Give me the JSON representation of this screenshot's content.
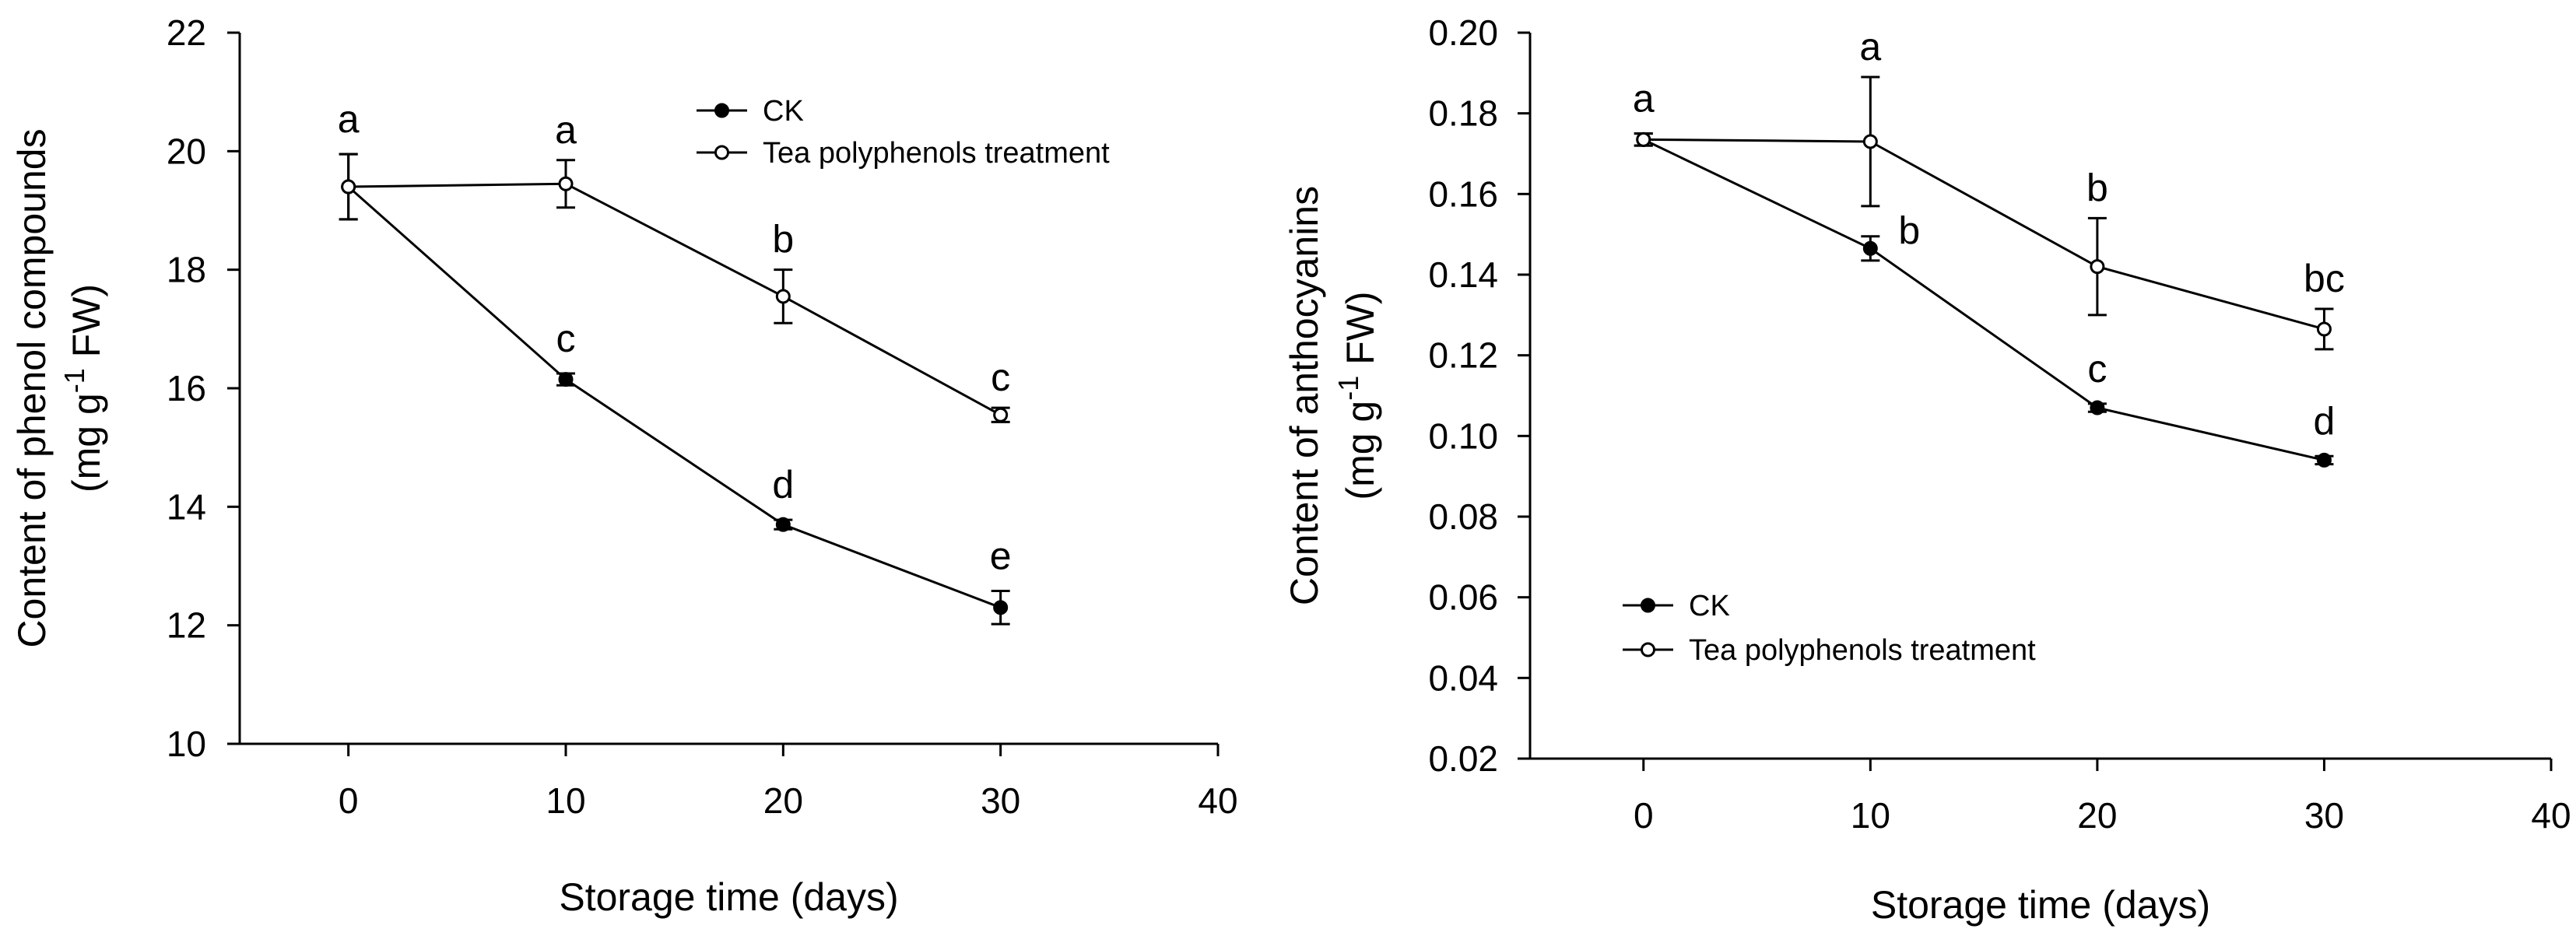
{
  "chart_data": [
    {
      "type": "line",
      "ylabel_line1": "Content of phenol compounds",
      "ylabel_line2_prefix": "(mg g",
      "ylabel_superscript": "-1",
      "ylabel_line2_suffix": " FW)",
      "xlabel": "Storage time (days)",
      "xlim": [
        -5,
        40
      ],
      "ylim": [
        10,
        22
      ],
      "xticks": [
        0,
        10,
        20,
        30,
        40
      ],
      "yticks": [
        10,
        12,
        14,
        16,
        18,
        20,
        22
      ],
      "ytick_labels": [
        "10",
        "12",
        "14",
        "16",
        "18",
        "20",
        "22"
      ],
      "legend_position": "top-right",
      "series": [
        {
          "name": "CK",
          "marker": "filled",
          "x": [
            0,
            10,
            20,
            30
          ],
          "y": [
            19.4,
            16.15,
            13.7,
            12.3
          ],
          "err": [
            0.55,
            0.1,
            0.08,
            0.28
          ],
          "labels": [
            "a",
            "c",
            "d",
            "e"
          ]
        },
        {
          "name": "Tea polyphenols treatment",
          "marker": "open",
          "x": [
            0,
            10,
            20,
            30
          ],
          "y": [
            19.4,
            19.45,
            17.55,
            15.55
          ],
          "err": [
            0.55,
            0.4,
            0.45,
            0.12
          ],
          "labels": [
            "",
            "a",
            "b",
            "c"
          ]
        }
      ]
    },
    {
      "type": "line",
      "ylabel_line1": "Content of anthocyanins",
      "ylabel_line2_prefix": "(mg g",
      "ylabel_superscript": "-1",
      "ylabel_line2_suffix": " FW)",
      "xlabel": "Storage time (days)",
      "xlim": [
        -5,
        40
      ],
      "ylim": [
        0.02,
        0.2
      ],
      "xticks": [
        0,
        10,
        20,
        30,
        40
      ],
      "yticks": [
        0.02,
        0.04,
        0.06,
        0.08,
        0.1,
        0.12,
        0.14,
        0.16,
        0.18,
        0.2
      ],
      "ytick_labels": [
        "0.02",
        "0.04",
        "0.06",
        "0.08",
        "0.10",
        "0.12",
        "0.14",
        "0.16",
        "0.18",
        "0.20"
      ],
      "legend_position": "bottom-left",
      "series": [
        {
          "name": "CK",
          "marker": "filled",
          "x": [
            0,
            10,
            20,
            30
          ],
          "y": [
            0.1735,
            0.1465,
            0.107,
            0.094
          ],
          "err": [
            0.0015,
            0.003,
            0.001,
            0.001
          ],
          "labels": [
            "a",
            "b",
            "c",
            "d"
          ]
        },
        {
          "name": "Tea polyphenols treatment",
          "marker": "open",
          "x": [
            0,
            10,
            20,
            30
          ],
          "y": [
            0.1735,
            0.173,
            0.142,
            0.1265
          ],
          "err": [
            0.0015,
            0.016,
            0.012,
            0.005
          ],
          "labels": [
            "",
            "a",
            "b",
            "bc"
          ]
        }
      ]
    }
  ]
}
